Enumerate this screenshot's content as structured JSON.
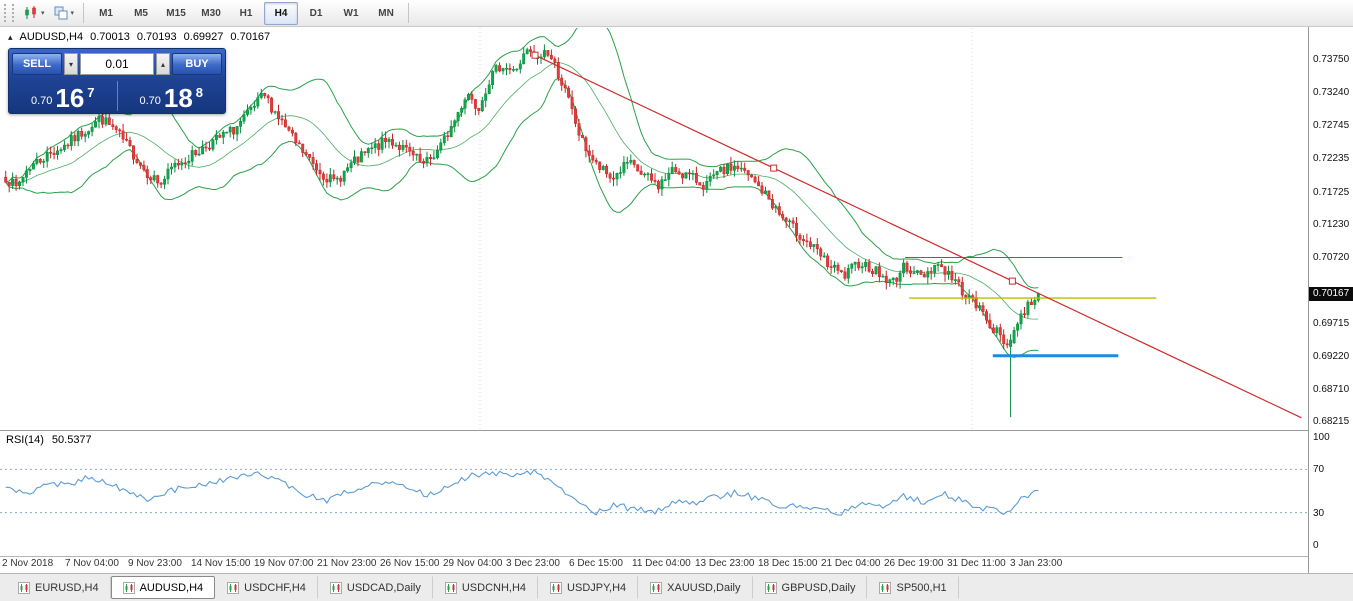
{
  "icons": {
    "collapse": "▴",
    "caret_down": "▾",
    "spinner_up": "▴",
    "spinner_down": "▾"
  },
  "toolbar": {
    "timeframes": [
      {
        "label": "M1",
        "active": false
      },
      {
        "label": "M5",
        "active": false
      },
      {
        "label": "M15",
        "active": false
      },
      {
        "label": "M30",
        "active": false
      },
      {
        "label": "H1",
        "active": false
      },
      {
        "label": "H4",
        "active": true
      },
      {
        "label": "D1",
        "active": false
      },
      {
        "label": "W1",
        "active": false
      },
      {
        "label": "MN",
        "active": false
      }
    ]
  },
  "header": {
    "symbol": "AUDUSD,H4",
    "open": "0.70013",
    "high": "0.70193",
    "low": "0.69927",
    "close": "0.70167"
  },
  "trade_panel": {
    "sell_label": "SELL",
    "buy_label": "BUY",
    "volume": "0.01",
    "sell_price": {
      "small": "0.70",
      "big": "16",
      "sup": "7"
    },
    "buy_price": {
      "small": "0.70",
      "big": "18",
      "sup": "8"
    }
  },
  "price_axis": {
    "ticks": [
      "0.73750",
      "0.73240",
      "0.72745",
      "0.72235",
      "0.71725",
      "0.71230",
      "0.70720",
      "0.70210",
      "0.69715",
      "0.69220",
      "0.68710",
      "0.68215"
    ],
    "current_price": "0.70167"
  },
  "rsi_panel": {
    "label": "RSI(14)",
    "value": "50.5377",
    "levels": [
      "100",
      "70",
      "30",
      "0"
    ],
    "level_values": [
      100,
      70,
      30,
      0
    ],
    "dashed_levels": [
      70,
      30
    ]
  },
  "time_axis": {
    "labels": [
      "2 Nov 2018",
      "7 Nov 04:00",
      "9 Nov 23:00",
      "14 Nov 15:00",
      "19 Nov 07:00",
      "21 Nov 23:00",
      "26 Nov 15:00",
      "29 Nov 04:00",
      "3 Dec 23:00",
      "6 Dec 15:00",
      "11 Dec 04:00",
      "13 Dec 23:00",
      "18 Dec 15:00",
      "21 Dec 04:00",
      "26 Dec 19:00",
      "31 Dec 11:00",
      "3 Jan 23:00"
    ]
  },
  "tabbar": {
    "tabs": [
      {
        "label": "EURUSD,H4",
        "active": false
      },
      {
        "label": "AUDUSD,H4",
        "active": true
      },
      {
        "label": "USDCHF,H4",
        "active": false
      },
      {
        "label": "USDCAD,Daily",
        "active": false
      },
      {
        "label": "USDCNH,H4",
        "active": false
      },
      {
        "label": "USDJPY,H4",
        "active": false
      },
      {
        "label": "XAUUSD,Daily",
        "active": false
      },
      {
        "label": "GBPUSD,Daily",
        "active": false
      },
      {
        "label": "SP500,H1",
        "active": false
      }
    ]
  },
  "chart_data": {
    "type": "candlestick",
    "symbol": "AUDUSD",
    "timeframe": "H4",
    "ohlc": {
      "open": 0.70013,
      "high": 0.70193,
      "low": 0.69927,
      "close": 0.70167
    },
    "ylim": [
      0.68085,
      0.74225
    ],
    "colors": {
      "up": "#0ba94c",
      "up_border": "#0a8a3e",
      "down": "#e43b3b",
      "down_border": "#c22626"
    },
    "candles": {
      "count": 300,
      "seed": 7,
      "noise": 0.0017,
      "wick_noise": 0.0011,
      "last_close": 0.70167,
      "close_path_anchors": [
        [
          0.0,
          0.7195
        ],
        [
          0.01,
          0.7178
        ],
        [
          0.022,
          0.721
        ],
        [
          0.04,
          0.7228
        ],
        [
          0.06,
          0.7246
        ],
        [
          0.08,
          0.727
        ],
        [
          0.092,
          0.7285
        ],
        [
          0.105,
          0.7268
        ],
        [
          0.12,
          0.7238
        ],
        [
          0.135,
          0.7205
        ],
        [
          0.15,
          0.7184
        ],
        [
          0.163,
          0.7212
        ],
        [
          0.18,
          0.7228
        ],
        [
          0.2,
          0.7248
        ],
        [
          0.222,
          0.7268
        ],
        [
          0.24,
          0.73
        ],
        [
          0.25,
          0.732
        ],
        [
          0.262,
          0.7292
        ],
        [
          0.28,
          0.7248
        ],
        [
          0.3,
          0.721
        ],
        [
          0.318,
          0.7186
        ],
        [
          0.335,
          0.7214
        ],
        [
          0.355,
          0.7238
        ],
        [
          0.372,
          0.7252
        ],
        [
          0.39,
          0.7232
        ],
        [
          0.405,
          0.7212
        ],
        [
          0.42,
          0.7238
        ],
        [
          0.435,
          0.7282
        ],
        [
          0.447,
          0.7325
        ],
        [
          0.457,
          0.73
        ],
        [
          0.468,
          0.7342
        ],
        [
          0.48,
          0.7368
        ],
        [
          0.492,
          0.7355
        ],
        [
          0.505,
          0.7386
        ],
        [
          0.515,
          0.7372
        ],
        [
          0.523,
          0.739
        ],
        [
          0.533,
          0.7362
        ],
        [
          0.545,
          0.7312
        ],
        [
          0.557,
          0.7252
        ],
        [
          0.572,
          0.7212
        ],
        [
          0.587,
          0.7192
        ],
        [
          0.602,
          0.7216
        ],
        [
          0.617,
          0.7198
        ],
        [
          0.632,
          0.7182
        ],
        [
          0.647,
          0.7206
        ],
        [
          0.662,
          0.7196
        ],
        [
          0.677,
          0.7182
        ],
        [
          0.692,
          0.7202
        ],
        [
          0.707,
          0.7212
        ],
        [
          0.722,
          0.7192
        ],
        [
          0.737,
          0.7166
        ],
        [
          0.752,
          0.7132
        ],
        [
          0.767,
          0.711
        ],
        [
          0.782,
          0.7086
        ],
        [
          0.797,
          0.706
        ],
        [
          0.812,
          0.7042
        ],
        [
          0.827,
          0.7066
        ],
        [
          0.842,
          0.7052
        ],
        [
          0.857,
          0.7032
        ],
        [
          0.872,
          0.706
        ],
        [
          0.887,
          0.7042
        ],
        [
          0.902,
          0.7064
        ],
        [
          0.917,
          0.704
        ],
        [
          0.932,
          0.7012
        ],
        [
          0.947,
          0.6986
        ],
        [
          0.958,
          0.696
        ],
        [
          0.97,
          0.6938
        ],
        [
          0.98,
          0.6972
        ],
        [
          0.99,
          0.7
        ],
        [
          1.0,
          0.70167
        ]
      ],
      "crash_candle": {
        "frac": 0.972,
        "open": 0.6936,
        "close": 0.6946,
        "high": 0.6955,
        "low": 0.6828
      }
    },
    "indicators": {
      "bollinger": {
        "period": 20,
        "deviation": 2,
        "color": "#2aa148"
      },
      "rsi": {
        "period": 14,
        "current": 50.5377,
        "color": "#5b9bd5",
        "scale": [
          0,
          100
        ],
        "anchors": [
          [
            0.0,
            54
          ],
          [
            0.02,
            47
          ],
          [
            0.04,
            58
          ],
          [
            0.06,
            55
          ],
          [
            0.08,
            63
          ],
          [
            0.1,
            57
          ],
          [
            0.12,
            47
          ],
          [
            0.14,
            42
          ],
          [
            0.16,
            50
          ],
          [
            0.18,
            55
          ],
          [
            0.2,
            58
          ],
          [
            0.22,
            61
          ],
          [
            0.25,
            66
          ],
          [
            0.27,
            56
          ],
          [
            0.29,
            47
          ],
          [
            0.31,
            41
          ],
          [
            0.33,
            49
          ],
          [
            0.35,
            56
          ],
          [
            0.37,
            59
          ],
          [
            0.39,
            51
          ],
          [
            0.41,
            46
          ],
          [
            0.43,
            55
          ],
          [
            0.45,
            64
          ],
          [
            0.47,
            68
          ],
          [
            0.49,
            62
          ],
          [
            0.51,
            68
          ],
          [
            0.53,
            58
          ],
          [
            0.55,
            41
          ],
          [
            0.57,
            30
          ],
          [
            0.59,
            37
          ],
          [
            0.61,
            33
          ],
          [
            0.63,
            31
          ],
          [
            0.65,
            42
          ],
          [
            0.67,
            39
          ],
          [
            0.69,
            45
          ],
          [
            0.71,
            49
          ],
          [
            0.73,
            42
          ],
          [
            0.75,
            35
          ],
          [
            0.77,
            36
          ],
          [
            0.79,
            32
          ],
          [
            0.81,
            30
          ],
          [
            0.83,
            40
          ],
          [
            0.85,
            37
          ],
          [
            0.87,
            45
          ],
          [
            0.89,
            40
          ],
          [
            0.91,
            47
          ],
          [
            0.93,
            40
          ],
          [
            0.95,
            33
          ],
          [
            0.97,
            29
          ],
          [
            0.985,
            44
          ],
          [
            1.0,
            50.5377
          ]
        ]
      }
    },
    "objects": {
      "trendline": {
        "points": [
          [
            0.409,
            0.7381
          ],
          [
            0.774,
            0.7036
          ]
        ],
        "extend_to_frac": 0.995,
        "color": "#cf2b2b",
        "selected": true
      },
      "hlines": [
        {
          "price": 0.7072,
          "from_frac": 0.692,
          "to_frac": 0.858,
          "color": "#e03030",
          "width": 1
        },
        {
          "price": 0.701,
          "from_frac": 0.695,
          "to_frac": 0.884,
          "color": "#bcbe00",
          "width": 1.4
        },
        {
          "price": 0.6922,
          "from_frac": 0.759,
          "to_frac": 0.855,
          "color": "#1f8ae0",
          "width": 3
        }
      ],
      "month_separators_frac": [
        0.367,
        0.743
      ]
    }
  }
}
